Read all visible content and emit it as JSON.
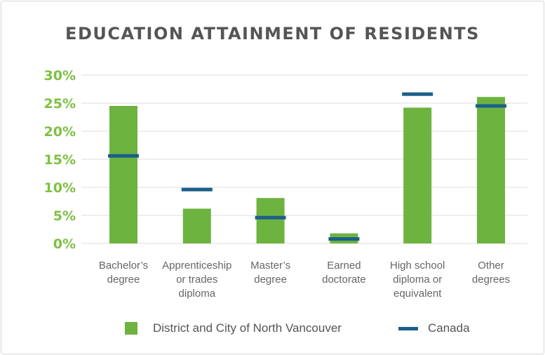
{
  "chart_data": {
    "type": "bar",
    "title": "EDUCATION ATTAINMENT OF RESIDENTS",
    "categories": [
      [
        "Bachelor’s",
        "degree"
      ],
      [
        "Apprenticeship",
        "or trades",
        "diploma"
      ],
      [
        "Master’s",
        "degree"
      ],
      [
        "Earned",
        "doctorate"
      ],
      [
        "High school",
        "diploma or",
        "equivalent"
      ],
      [
        "Other",
        "degrees"
      ]
    ],
    "series": [
      {
        "name": "District and City of North Vancouver",
        "kind": "bar",
        "color": "#6db33f",
        "values": [
          24.5,
          6.2,
          8.1,
          1.8,
          24.2,
          26.1
        ]
      },
      {
        "name": "Canada",
        "kind": "marker",
        "color": "#1b5f8a",
        "values": [
          15.6,
          9.6,
          4.6,
          0.8,
          26.6,
          24.5
        ]
      }
    ],
    "ylim": [
      0,
      30
    ],
    "yticks": [
      "0%",
      "5%",
      "10%",
      "15%",
      "20%",
      "25%",
      "30%"
    ],
    "ytick_color": "#7dc142",
    "xtick_color": "#666666",
    "grid": true,
    "legend": "bottom"
  }
}
